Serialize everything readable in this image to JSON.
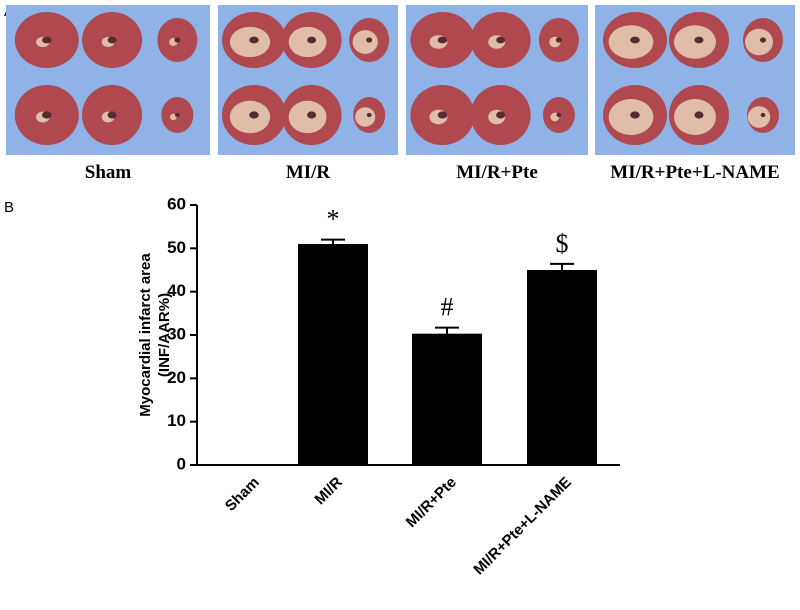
{
  "panel_labels": [
    "A",
    "B"
  ],
  "photo_captions": [
    "Sham",
    "MI/R",
    "MI/R+Pte",
    "MI/R+Pte+L-NAME"
  ],
  "chart_data": {
    "type": "bar",
    "ylabel": [
      "Myocardial infarct area",
      "(INF/AAR%)"
    ],
    "categories": [
      "Sham",
      "MI/R",
      "MI/R+Pte",
      "MI/R+Pte+L-NAME"
    ],
    "values": [
      0,
      51,
      30.3,
      45
    ],
    "errors": [
      0,
      1,
      1.4,
      1.4
    ],
    "bar_labels": [
      null,
      "*",
      "#",
      "$"
    ],
    "color": "#000000",
    "ylim": [
      0,
      60
    ],
    "yticks": [
      0,
      10,
      20,
      30,
      40,
      50,
      60
    ]
  }
}
